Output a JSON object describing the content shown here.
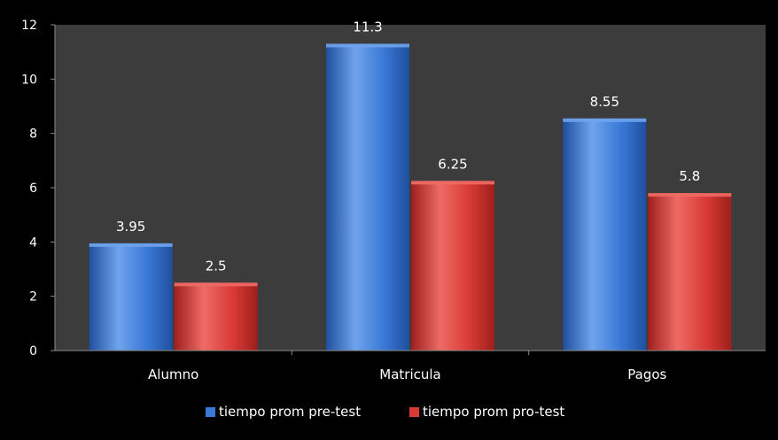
{
  "chart_data": {
    "type": "bar",
    "categories": [
      "Alumno",
      "Matricula",
      "Pagos"
    ],
    "series": [
      {
        "name": "tiempo prom pre-test",
        "values": [
          3.95,
          11.3,
          8.55
        ],
        "color": "#3a78d6",
        "color_light": "#6fa3ec",
        "color_dark": "#1f4f9e"
      },
      {
        "name": "tiempo prom pro-test",
        "values": [
          2.5,
          6.25,
          5.8
        ],
        "color": "#d93a36",
        "color_light": "#ee6b66",
        "color_dark": "#9e1f1c"
      }
    ],
    "data_labels": [
      [
        "3.95",
        "11.3",
        "8.55"
      ],
      [
        "2.5",
        "6.25",
        "5.8"
      ]
    ],
    "ylim": [
      0,
      12
    ],
    "yticks": [
      0,
      2,
      4,
      6,
      8,
      10,
      12
    ],
    "grid": false,
    "legend_position": "bottom",
    "plot_background": "#3c3c3c",
    "background": "#000000"
  }
}
